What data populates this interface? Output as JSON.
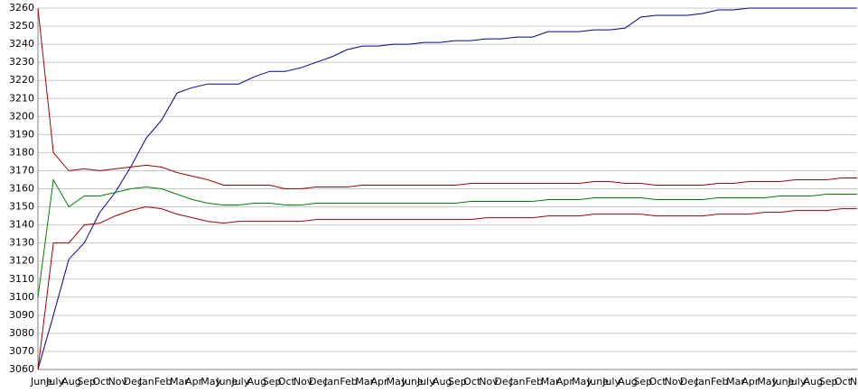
{
  "chart_data": {
    "type": "line",
    "categories": [
      "June",
      "July",
      "Aug",
      "Sep",
      "Oct",
      "Nov",
      "Dec",
      "Jan",
      "Feb",
      "Mar",
      "Apr",
      "May",
      "June",
      "July",
      "Aug",
      "Sep",
      "Oct",
      "Nov",
      "Dec",
      "Jan",
      "Feb",
      "Mar",
      "Apr",
      "May",
      "June",
      "July",
      "Aug",
      "Sep",
      "Oct",
      "Nov",
      "Dec",
      "Jan",
      "Feb",
      "Mar",
      "Apr",
      "May",
      "June",
      "July",
      "Aug",
      "Sep",
      "Oct",
      "Nov",
      "Dec",
      "Jan",
      "Feb",
      "Mar",
      "Apr",
      "May",
      "June",
      "July",
      "Aug",
      "Sep",
      "Oct",
      "Nov"
    ],
    "series": [
      {
        "color": "#00008b",
        "values": [
          3060,
          3090,
          3121,
          3130,
          3147,
          3158,
          3172,
          3188,
          3198,
          3213,
          3216,
          3218,
          3218,
          3218,
          3222,
          3225,
          3225,
          3227,
          3230,
          3233,
          3237,
          3239,
          3239,
          3240,
          3240,
          3241,
          3241,
          3242,
          3242,
          3243,
          3243,
          3244,
          3244,
          3247,
          3247,
          3247,
          3248,
          3248,
          3249,
          3255,
          3256,
          3256,
          3256,
          3257,
          3259,
          3259,
          3260,
          3260,
          3260,
          3260,
          3260,
          3260,
          3260,
          3260
        ]
      },
      {
        "color": "#a00000",
        "values": [
          3260,
          3180,
          3170,
          3171,
          3170,
          3171,
          3172,
          3173,
          3172,
          3169,
          3167,
          3165,
          3162,
          3162,
          3162,
          3162,
          3160,
          3160,
          3161,
          3161,
          3161,
          3162,
          3162,
          3162,
          3162,
          3162,
          3162,
          3162,
          3163,
          3163,
          3163,
          3163,
          3163,
          3163,
          3163,
          3163,
          3164,
          3164,
          3163,
          3163,
          3162,
          3162,
          3162,
          3162,
          3163,
          3163,
          3164,
          3164,
          3164,
          3165,
          3165,
          3165,
          3166,
          3166
        ]
      },
      {
        "color": "#008000",
        "values": [
          3100,
          3165,
          3150,
          3156,
          3156,
          3158,
          3160,
          3161,
          3160,
          3157,
          3154,
          3152,
          3151,
          3151,
          3152,
          3152,
          3151,
          3151,
          3152,
          3152,
          3152,
          3152,
          3152,
          3152,
          3152,
          3152,
          3152,
          3152,
          3153,
          3153,
          3153,
          3153,
          3153,
          3154,
          3154,
          3154,
          3155,
          3155,
          3155,
          3155,
          3154,
          3154,
          3154,
          3154,
          3155,
          3155,
          3155,
          3155,
          3156,
          3156,
          3156,
          3157,
          3157,
          3157
        ]
      },
      {
        "color": "#a00000",
        "values": [
          3060,
          3130,
          3130,
          3140,
          3141,
          3145,
          3148,
          3150,
          3149,
          3146,
          3144,
          3142,
          3141,
          3142,
          3142,
          3142,
          3142,
          3142,
          3143,
          3143,
          3143,
          3143,
          3143,
          3143,
          3143,
          3143,
          3143,
          3143,
          3143,
          3144,
          3144,
          3144,
          3144,
          3145,
          3145,
          3145,
          3146,
          3146,
          3146,
          3146,
          3145,
          3145,
          3145,
          3145,
          3146,
          3146,
          3146,
          3147,
          3147,
          3148,
          3148,
          3148,
          3149,
          3149
        ]
      }
    ],
    "ylim": [
      3060,
      3260
    ],
    "yticks": [
      3060,
      3070,
      3080,
      3090,
      3100,
      3110,
      3120,
      3130,
      3140,
      3150,
      3160,
      3170,
      3180,
      3190,
      3200,
      3210,
      3220,
      3230,
      3240,
      3250,
      3260
    ],
    "grid": true
  }
}
